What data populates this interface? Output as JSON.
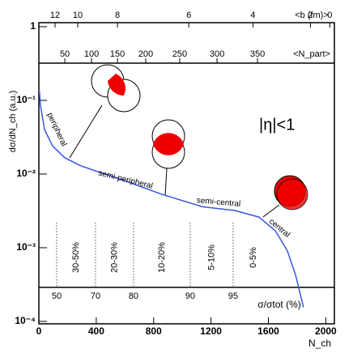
{
  "chart_data": {
    "type": "line",
    "y_label": "dσ/dN_ch (a.u.)",
    "x_label": "N_ch",
    "annotation": "|η|<1",
    "region_labels": [
      "peripheral",
      "semi-peripheral",
      "semi-central",
      "central"
    ],
    "x": [
      3,
      11,
      40,
      96,
      181,
      293,
      576,
      858,
      1140,
      1366,
      1535,
      1648,
      1732,
      1789,
      1845
    ],
    "values": [
      0.14,
      0.086,
      0.04,
      0.024,
      0.0166,
      0.0129,
      0.0084,
      0.0053,
      0.0036,
      0.0032,
      0.0026,
      0.0017,
      0.00091,
      0.00043,
      0.000155
    ],
    "color": "#3a55e0",
    "xlim": [
      0,
      2060
    ],
    "xticks": [
      0,
      400,
      800,
      1200,
      1600,
      2000
    ],
    "ylim": [
      0.0001,
      1
    ],
    "yticks": [
      {
        "value": 1,
        "label": "1"
      },
      {
        "value": 0.1,
        "label": "10⁻¹"
      },
      {
        "value": 0.01,
        "label": "10⁻²"
      },
      {
        "value": 0.001,
        "label": "10⁻³"
      },
      {
        "value": 0.0001,
        "label": "10⁻⁴"
      }
    ],
    "log_y": true,
    "b_axis": {
      "label": "<b (fm)>",
      "ticks": [
        12,
        10,
        8,
        6,
        4,
        2,
        0
      ],
      "positions": [
        113,
        271,
        548,
        1045,
        1492,
        1893,
        2028
      ]
    },
    "npart_axis": {
      "label": "<N_part>",
      "ticks": [
        50,
        100,
        150,
        200,
        250,
        300,
        350
      ],
      "positions": [
        181,
        367,
        548,
        745,
        982,
        1242,
        1524
      ]
    },
    "centrality_axis": {
      "label": "σ/σtot (%)",
      "ticks": [
        50,
        70,
        80,
        90,
        95
      ],
      "positions": [
        124,
        395,
        660,
        1055,
        1354
      ],
      "classes": [
        "30-50%",
        "20-30%",
        "10-20%",
        "5-10%",
        "0-5%"
      ]
    }
  }
}
